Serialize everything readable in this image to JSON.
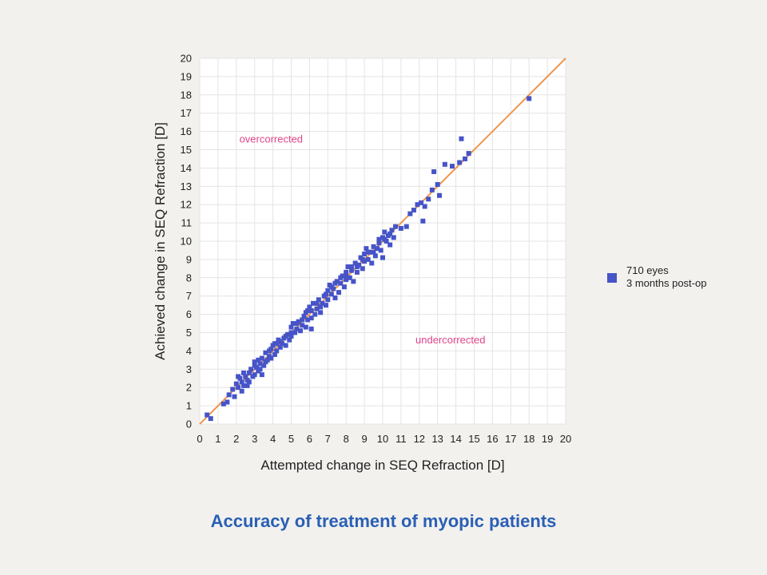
{
  "colors": {
    "points": "#4654c8",
    "diagonal": "#f0954a",
    "region_text": "#e0458a",
    "title": "#2a5fb5",
    "grid": "#e4e4e4",
    "plot_bg": "#ffffff"
  },
  "legend": {
    "line1": "710 eyes",
    "line2": "3 months post-op"
  },
  "chart_data": {
    "type": "scatter",
    "title": "Accuracy of treatment of myopic patients",
    "xlabel": "Attempted change in SEQ Refraction [D]",
    "ylabel": "Achieved change in SEQ Refraction [D]",
    "xlim": [
      0,
      20
    ],
    "ylim": [
      0,
      20
    ],
    "xticks": [
      "0",
      "1",
      "2",
      "3",
      "4",
      "5",
      "6",
      "7",
      "8",
      "9",
      "10",
      "11",
      "12",
      "13",
      "14",
      "15",
      "16",
      "17",
      "18",
      "19",
      "20"
    ],
    "yticks": [
      "0",
      "1",
      "2",
      "3",
      "4",
      "5",
      "6",
      "7",
      "8",
      "9",
      "10",
      "11",
      "12",
      "13",
      "14",
      "15",
      "16",
      "17",
      "18",
      "19",
      "20"
    ],
    "grid": true,
    "legend_position": "right",
    "reference_line": {
      "from": [
        0,
        0
      ],
      "to": [
        20,
        20
      ]
    },
    "annotations": [
      {
        "text": "overcorrected",
        "x": 3.9,
        "y": 15.4
      },
      {
        "text": "undercorrected",
        "x": 13.7,
        "y": 4.4
      }
    ],
    "series": [
      {
        "name": "710 eyes 3 months post-op",
        "points": [
          [
            0.4,
            0.5
          ],
          [
            0.6,
            0.3
          ],
          [
            1.3,
            1.1
          ],
          [
            1.5,
            1.2
          ],
          [
            1.6,
            1.6
          ],
          [
            1.8,
            1.9
          ],
          [
            1.9,
            1.5
          ],
          [
            2.0,
            2.2
          ],
          [
            2.1,
            2.0
          ],
          [
            2.2,
            2.5
          ],
          [
            2.3,
            1.8
          ],
          [
            2.3,
            2.3
          ],
          [
            2.4,
            2.1
          ],
          [
            2.5,
            2.6
          ],
          [
            2.6,
            2.4
          ],
          [
            2.7,
            2.8
          ],
          [
            2.7,
            2.3
          ],
          [
            2.8,
            3.0
          ],
          [
            2.9,
            2.6
          ],
          [
            3.0,
            3.2
          ],
          [
            3.0,
            2.7
          ],
          [
            3.1,
            3.1
          ],
          [
            3.2,
            3.5
          ],
          [
            3.2,
            2.9
          ],
          [
            3.3,
            3.3
          ],
          [
            3.4,
            2.7
          ],
          [
            3.4,
            3.6
          ],
          [
            3.5,
            3.2
          ],
          [
            3.6,
            3.9
          ],
          [
            3.7,
            3.5
          ],
          [
            3.8,
            3.7
          ],
          [
            3.9,
            4.1
          ],
          [
            3.9,
            3.6
          ],
          [
            4.0,
            4.3
          ],
          [
            4.1,
            3.8
          ],
          [
            4.2,
            4.4
          ],
          [
            4.2,
            4.0
          ],
          [
            4.3,
            4.6
          ],
          [
            4.4,
            4.2
          ],
          [
            4.5,
            4.4
          ],
          [
            4.6,
            4.7
          ],
          [
            4.7,
            4.3
          ],
          [
            4.8,
            4.9
          ],
          [
            4.9,
            4.6
          ],
          [
            5.0,
            5.3
          ],
          [
            5.0,
            4.8
          ],
          [
            5.1,
            5.5
          ],
          [
            5.2,
            5.0
          ],
          [
            5.3,
            5.2
          ],
          [
            5.4,
            5.6
          ],
          [
            5.5,
            5.1
          ],
          [
            5.6,
            5.4
          ],
          [
            5.7,
            5.9
          ],
          [
            5.8,
            5.3
          ],
          [
            5.9,
            6.2
          ],
          [
            5.9,
            5.7
          ],
          [
            6.0,
            6.4
          ],
          [
            6.1,
            5.8
          ],
          [
            6.1,
            5.2
          ],
          [
            6.2,
            6.6
          ],
          [
            6.3,
            6.0
          ],
          [
            6.4,
            6.3
          ],
          [
            6.5,
            6.8
          ],
          [
            6.6,
            6.1
          ],
          [
            6.7,
            6.6
          ],
          [
            6.8,
            7.0
          ],
          [
            6.9,
            6.5
          ],
          [
            7.0,
            7.3
          ],
          [
            7.0,
            6.8
          ],
          [
            7.1,
            7.6
          ],
          [
            7.2,
            7.1
          ],
          [
            7.3,
            7.4
          ],
          [
            7.4,
            6.9
          ],
          [
            7.5,
            7.8
          ],
          [
            7.6,
            7.2
          ],
          [
            7.7,
            7.7
          ],
          [
            7.8,
            8.1
          ],
          [
            7.9,
            7.5
          ],
          [
            8.0,
            8.3
          ],
          [
            8.0,
            7.9
          ],
          [
            8.1,
            8.6
          ],
          [
            8.2,
            8.0
          ],
          [
            8.3,
            8.4
          ],
          [
            8.4,
            7.8
          ],
          [
            8.5,
            8.8
          ],
          [
            8.6,
            8.3
          ],
          [
            8.7,
            8.7
          ],
          [
            8.8,
            9.1
          ],
          [
            8.9,
            8.5
          ],
          [
            9.0,
            9.3
          ],
          [
            9.0,
            8.9
          ],
          [
            9.1,
            9.6
          ],
          [
            9.2,
            9.0
          ],
          [
            9.3,
            9.4
          ],
          [
            9.4,
            8.8
          ],
          [
            9.5,
            9.7
          ],
          [
            9.6,
            9.2
          ],
          [
            9.7,
            9.6
          ],
          [
            9.8,
            9.9
          ],
          [
            9.9,
            9.5
          ],
          [
            10.0,
            10.2
          ],
          [
            10.0,
            9.1
          ],
          [
            10.1,
            10.5
          ],
          [
            10.2,
            10.0
          ],
          [
            10.3,
            10.3
          ],
          [
            10.4,
            9.8
          ],
          [
            10.5,
            10.6
          ],
          [
            10.6,
            10.2
          ],
          [
            10.7,
            10.8
          ],
          [
            11.0,
            10.7
          ],
          [
            11.3,
            10.8
          ],
          [
            11.5,
            11.5
          ],
          [
            11.7,
            11.7
          ],
          [
            11.9,
            12.0
          ],
          [
            12.1,
            12.1
          ],
          [
            12.2,
            11.1
          ],
          [
            12.3,
            11.9
          ],
          [
            12.5,
            12.3
          ],
          [
            12.7,
            12.8
          ],
          [
            12.8,
            13.8
          ],
          [
            13.0,
            13.1
          ],
          [
            13.1,
            12.5
          ],
          [
            13.4,
            14.2
          ],
          [
            13.8,
            14.1
          ],
          [
            14.2,
            14.3
          ],
          [
            14.3,
            15.6
          ],
          [
            14.5,
            14.5
          ],
          [
            14.7,
            14.8
          ],
          [
            18.0,
            17.8
          ],
          [
            2.1,
            2.6
          ],
          [
            2.4,
            2.8
          ],
          [
            2.6,
            2.1
          ],
          [
            3.0,
            3.4
          ],
          [
            3.3,
            3.0
          ],
          [
            3.6,
            3.4
          ],
          [
            3.8,
            4.0
          ],
          [
            4.1,
            4.4
          ],
          [
            4.4,
            4.5
          ],
          [
            4.7,
            4.8
          ],
          [
            5.0,
            5.0
          ],
          [
            5.3,
            5.5
          ],
          [
            5.6,
            5.7
          ],
          [
            5.8,
            6.1
          ],
          [
            6.1,
            6.2
          ],
          [
            6.4,
            6.6
          ],
          [
            6.6,
            6.4
          ],
          [
            6.9,
            7.1
          ],
          [
            7.2,
            7.5
          ],
          [
            7.4,
            7.7
          ],
          [
            7.7,
            8.0
          ],
          [
            8.0,
            8.1
          ],
          [
            8.3,
            8.6
          ],
          [
            8.6,
            8.6
          ],
          [
            8.9,
            9.0
          ],
          [
            9.2,
            9.4
          ],
          [
            9.5,
            9.4
          ],
          [
            9.8,
            10.1
          ],
          [
            10.1,
            10.1
          ],
          [
            10.4,
            10.4
          ]
        ]
      }
    ]
  }
}
